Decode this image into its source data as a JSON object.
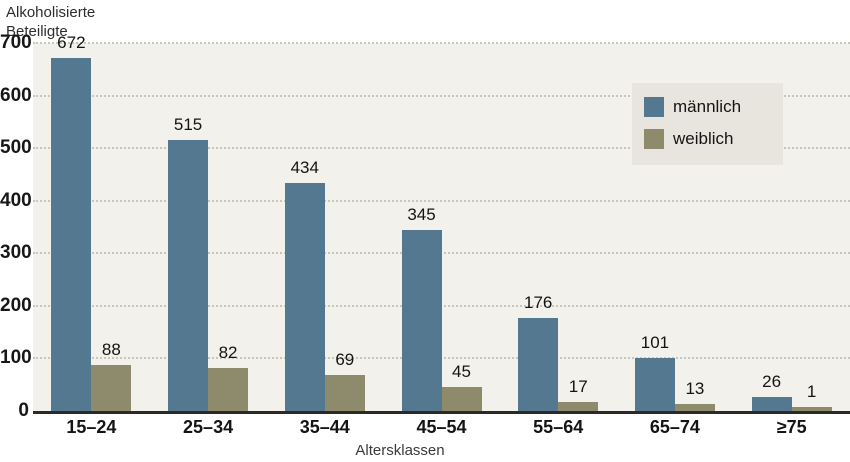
{
  "chart_data": {
    "type": "bar",
    "title_lines": [
      "Alkoholisierte",
      "Beteiligte"
    ],
    "xlabel": "Altersklassen",
    "categories": [
      "15–24",
      "25–34",
      "35–44",
      "45–54",
      "55–64",
      "65–74",
      "≥75"
    ],
    "series": [
      {
        "name": "männlich",
        "color": "#54788f",
        "values": [
          672,
          515,
          434,
          345,
          176,
          101,
          26
        ]
      },
      {
        "name": "weiblich",
        "color": "#8e8b6c",
        "values": [
          88,
          82,
          69,
          45,
          17,
          13,
          1
        ]
      }
    ],
    "ylim": [
      0,
      700
    ],
    "ytick_step": 100,
    "grid": "dotted-horizontal",
    "legend_position": "top-right"
  },
  "colors": {
    "plot_background": "#f2f1eb",
    "page_background": "#ffffff",
    "gridline": "#c7c6bd",
    "axis_line": "#2b2a26",
    "text": "#141414",
    "legend_background": "#e7e5de"
  }
}
